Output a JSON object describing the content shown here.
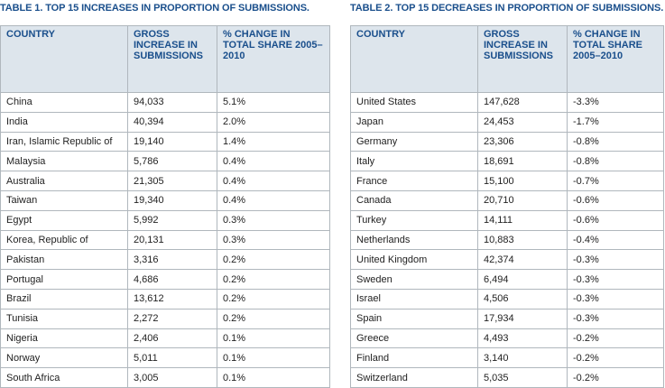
{
  "table1": {
    "title": "TABLE 1. TOP 15 INCREASES IN PROPORTION OF SUBMISSIONS.",
    "headers": [
      "COUNTRY",
      "GROSS INCREASE IN SUBMISSIONS",
      "% CHANGE IN TOTAL SHARE 2005–2010"
    ],
    "rows": [
      [
        "China",
        "94,033",
        "5.1%"
      ],
      [
        "India",
        "40,394",
        "2.0%"
      ],
      [
        "Iran, Islamic Republic of",
        "19,140",
        "1.4%"
      ],
      [
        "Malaysia",
        "5,786",
        "0.4%"
      ],
      [
        "Australia",
        "21,305",
        "0.4%"
      ],
      [
        "Taiwan",
        "19,340",
        "0.4%"
      ],
      [
        "Egypt",
        "5,992",
        "0.3%"
      ],
      [
        "Korea, Republic of",
        "20,131",
        "0.3%"
      ],
      [
        "Pakistan",
        "3,316",
        "0.2%"
      ],
      [
        "Portugal",
        "4,686",
        "0.2%"
      ],
      [
        "Brazil",
        "13,612",
        "0.2%"
      ],
      [
        "Tunisia",
        "2,272",
        "0.2%"
      ],
      [
        "Nigeria",
        "2,406",
        "0.1%"
      ],
      [
        "Norway",
        "5,011",
        "0.1%"
      ],
      [
        "South Africa",
        "3,005",
        "0.1%"
      ]
    ]
  },
  "table2": {
    "title": "TABLE 2. TOP 15 DECREASES IN PROPORTION OF SUBMISSIONS.",
    "headers": [
      "COUNTRY",
      "GROSS INCREASE IN SUBMISSIONS",
      "% CHANGE IN TOTAL SHARE 2005–2010"
    ],
    "rows": [
      [
        "United States",
        "147,628",
        "-3.3%"
      ],
      [
        "Japan",
        "24,453",
        "-1.7%"
      ],
      [
        "Germany",
        "23,306",
        "-0.8%"
      ],
      [
        "Italy",
        "18,691",
        "-0.8%"
      ],
      [
        "France",
        "15,100",
        "-0.7%"
      ],
      [
        "Canada",
        "20,710",
        "-0.6%"
      ],
      [
        "Turkey",
        "14,111",
        "-0.6%"
      ],
      [
        "Netherlands",
        "10,883",
        "-0.4%"
      ],
      [
        "United Kingdom",
        "42,374",
        "-0.3%"
      ],
      [
        "Sweden",
        "6,494",
        "-0.3%"
      ],
      [
        "Israel",
        "4,506",
        "-0.3%"
      ],
      [
        "Spain",
        "17,934",
        "-0.3%"
      ],
      [
        "Greece",
        "4,493",
        "-0.2%"
      ],
      [
        "Finland",
        "3,140",
        "-0.2%"
      ],
      [
        "Switzerland",
        "5,035",
        "-0.2%"
      ]
    ]
  }
}
